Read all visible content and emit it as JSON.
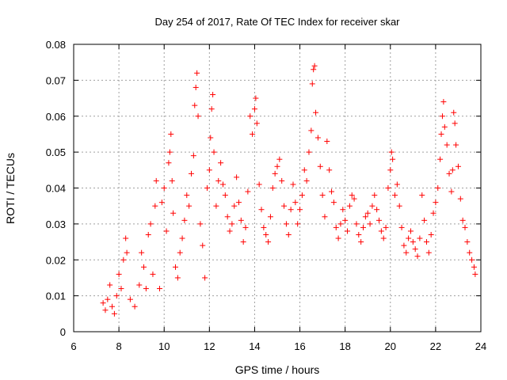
{
  "chart_data": {
    "type": "scatter",
    "title": "Day 254 of 2017, Rate Of TEC Index for receiver skar",
    "xlabel": "GPS time / hours",
    "ylabel": "ROTI / TECUs",
    "xlim": [
      6,
      24
    ],
    "ylim": [
      0,
      0.08
    ],
    "xticks": [
      "6",
      "8",
      "10",
      "12",
      "14",
      "16",
      "18",
      "20",
      "22",
      "24"
    ],
    "yticks": [
      "0",
      "0.01",
      "0.02",
      "0.03",
      "0.04",
      "0.05",
      "0.06",
      "0.07",
      "0.08"
    ],
    "grid": true,
    "marker": "plus",
    "color": "#ff0000",
    "points": [
      [
        7.3,
        0.008
      ],
      [
        7.4,
        0.006
      ],
      [
        7.5,
        0.009
      ],
      [
        7.6,
        0.013
      ],
      [
        7.7,
        0.007
      ],
      [
        7.8,
        0.005
      ],
      [
        7.9,
        0.01
      ],
      [
        8.0,
        0.016
      ],
      [
        8.1,
        0.012
      ],
      [
        8.2,
        0.02
      ],
      [
        8.3,
        0.026
      ],
      [
        8.35,
        0.022
      ],
      [
        8.5,
        0.009
      ],
      [
        8.7,
        0.007
      ],
      [
        8.9,
        0.013
      ],
      [
        9.0,
        0.022
      ],
      [
        9.1,
        0.018
      ],
      [
        9.2,
        0.012
      ],
      [
        9.3,
        0.027
      ],
      [
        9.4,
        0.03
      ],
      [
        9.5,
        0.016
      ],
      [
        9.6,
        0.035
      ],
      [
        9.65,
        0.042
      ],
      [
        9.8,
        0.012
      ],
      [
        9.9,
        0.036
      ],
      [
        10.0,
        0.04
      ],
      [
        10.1,
        0.028
      ],
      [
        10.2,
        0.047
      ],
      [
        10.25,
        0.05
      ],
      [
        10.3,
        0.055
      ],
      [
        10.35,
        0.042
      ],
      [
        10.4,
        0.033
      ],
      [
        10.5,
        0.018
      ],
      [
        10.6,
        0.015
      ],
      [
        10.7,
        0.022
      ],
      [
        10.8,
        0.026
      ],
      [
        10.9,
        0.031
      ],
      [
        11.0,
        0.038
      ],
      [
        11.1,
        0.035
      ],
      [
        11.2,
        0.044
      ],
      [
        11.3,
        0.049
      ],
      [
        11.35,
        0.063
      ],
      [
        11.4,
        0.068
      ],
      [
        11.45,
        0.072
      ],
      [
        11.5,
        0.06
      ],
      [
        11.6,
        0.03
      ],
      [
        11.7,
        0.024
      ],
      [
        11.8,
        0.015
      ],
      [
        11.9,
        0.04
      ],
      [
        12.0,
        0.045
      ],
      [
        12.05,
        0.054
      ],
      [
        12.1,
        0.062
      ],
      [
        12.15,
        0.066
      ],
      [
        12.2,
        0.05
      ],
      [
        12.3,
        0.035
      ],
      [
        12.4,
        0.042
      ],
      [
        12.5,
        0.047
      ],
      [
        12.6,
        0.041
      ],
      [
        12.7,
        0.038
      ],
      [
        12.8,
        0.032
      ],
      [
        12.9,
        0.028
      ],
      [
        13.0,
        0.03
      ],
      [
        13.1,
        0.035
      ],
      [
        13.2,
        0.043
      ],
      [
        13.3,
        0.036
      ],
      [
        13.4,
        0.031
      ],
      [
        13.5,
        0.025
      ],
      [
        13.6,
        0.029
      ],
      [
        13.7,
        0.039
      ],
      [
        13.8,
        0.06
      ],
      [
        13.9,
        0.055
      ],
      [
        14.0,
        0.062
      ],
      [
        14.05,
        0.065
      ],
      [
        14.1,
        0.058
      ],
      [
        14.2,
        0.041
      ],
      [
        14.3,
        0.034
      ],
      [
        14.4,
        0.029
      ],
      [
        14.5,
        0.027
      ],
      [
        14.6,
        0.025
      ],
      [
        14.7,
        0.032
      ],
      [
        14.8,
        0.04
      ],
      [
        14.9,
        0.044
      ],
      [
        15.0,
        0.046
      ],
      [
        15.1,
        0.048
      ],
      [
        15.2,
        0.042
      ],
      [
        15.3,
        0.035
      ],
      [
        15.4,
        0.03
      ],
      [
        15.5,
        0.027
      ],
      [
        15.6,
        0.034
      ],
      [
        15.7,
        0.041
      ],
      [
        15.8,
        0.036
      ],
      [
        15.9,
        0.03
      ],
      [
        16.0,
        0.034
      ],
      [
        16.1,
        0.038
      ],
      [
        16.2,
        0.045
      ],
      [
        16.3,
        0.042
      ],
      [
        16.4,
        0.05
      ],
      [
        16.5,
        0.056
      ],
      [
        16.55,
        0.069
      ],
      [
        16.6,
        0.073
      ],
      [
        16.65,
        0.074
      ],
      [
        16.7,
        0.061
      ],
      [
        16.8,
        0.054
      ],
      [
        16.9,
        0.046
      ],
      [
        17.0,
        0.038
      ],
      [
        17.1,
        0.032
      ],
      [
        17.2,
        0.053
      ],
      [
        17.3,
        0.045
      ],
      [
        17.4,
        0.039
      ],
      [
        17.5,
        0.036
      ],
      [
        17.6,
        0.029
      ],
      [
        17.7,
        0.026
      ],
      [
        17.8,
        0.03
      ],
      [
        17.9,
        0.034
      ],
      [
        18.0,
        0.031
      ],
      [
        18.1,
        0.028
      ],
      [
        18.2,
        0.035
      ],
      [
        18.3,
        0.038
      ],
      [
        18.4,
        0.037
      ],
      [
        18.5,
        0.03
      ],
      [
        18.6,
        0.027
      ],
      [
        18.7,
        0.025
      ],
      [
        18.8,
        0.029
      ],
      [
        18.9,
        0.032
      ],
      [
        19.0,
        0.033
      ],
      [
        19.1,
        0.03
      ],
      [
        19.2,
        0.035
      ],
      [
        19.3,
        0.038
      ],
      [
        19.4,
        0.034
      ],
      [
        19.5,
        0.031
      ],
      [
        19.6,
        0.028
      ],
      [
        19.7,
        0.026
      ],
      [
        19.8,
        0.029
      ],
      [
        19.9,
        0.04
      ],
      [
        20.0,
        0.045
      ],
      [
        20.05,
        0.05
      ],
      [
        20.1,
        0.048
      ],
      [
        20.2,
        0.038
      ],
      [
        20.3,
        0.041
      ],
      [
        20.4,
        0.035
      ],
      [
        20.5,
        0.029
      ],
      [
        20.6,
        0.024
      ],
      [
        20.7,
        0.022
      ],
      [
        20.8,
        0.026
      ],
      [
        20.9,
        0.028
      ],
      [
        21.0,
        0.025
      ],
      [
        21.1,
        0.023
      ],
      [
        21.2,
        0.021
      ],
      [
        21.3,
        0.026
      ],
      [
        21.4,
        0.038
      ],
      [
        21.5,
        0.031
      ],
      [
        21.6,
        0.025
      ],
      [
        21.7,
        0.022
      ],
      [
        21.8,
        0.027
      ],
      [
        21.9,
        0.033
      ],
      [
        22.0,
        0.036
      ],
      [
        22.1,
        0.04
      ],
      [
        22.2,
        0.048
      ],
      [
        22.25,
        0.055
      ],
      [
        22.3,
        0.06
      ],
      [
        22.35,
        0.064
      ],
      [
        22.4,
        0.057
      ],
      [
        22.5,
        0.052
      ],
      [
        22.6,
        0.044
      ],
      [
        22.7,
        0.039
      ],
      [
        22.75,
        0.045
      ],
      [
        22.8,
        0.061
      ],
      [
        22.85,
        0.058
      ],
      [
        22.9,
        0.052
      ],
      [
        23.0,
        0.046
      ],
      [
        23.1,
        0.037
      ],
      [
        23.2,
        0.031
      ],
      [
        23.3,
        0.029
      ],
      [
        23.4,
        0.025
      ],
      [
        23.5,
        0.022
      ],
      [
        23.6,
        0.02
      ],
      [
        23.7,
        0.018
      ],
      [
        23.75,
        0.016
      ]
    ]
  }
}
